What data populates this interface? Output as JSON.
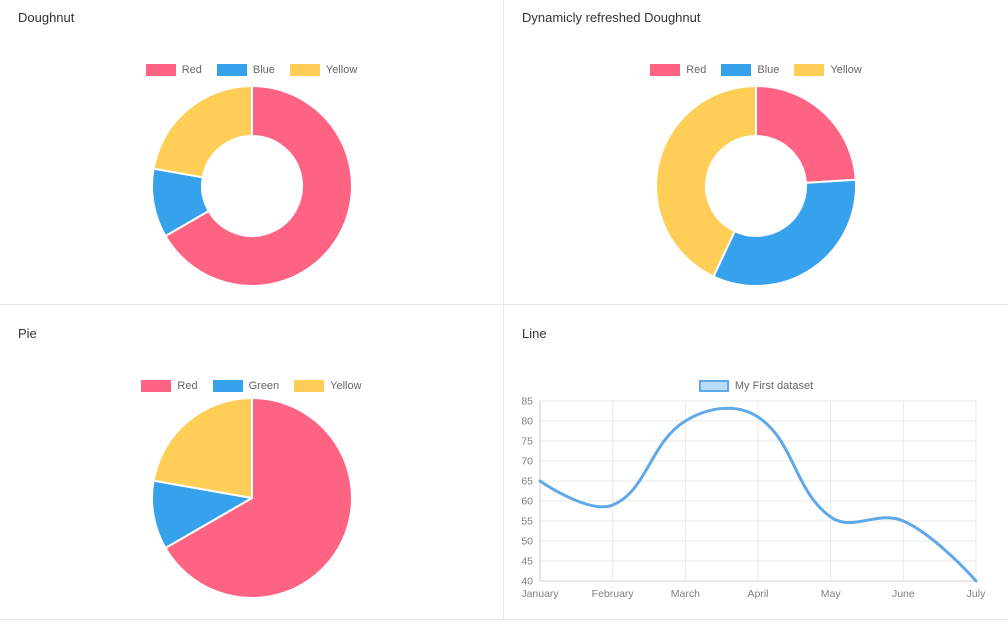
{
  "page": {
    "background": "#ffffff",
    "divider_color": "#e7e7e7",
    "title_color": "#333333",
    "legend_text_color": "#666666",
    "tick_text_color": "#7f7f7f"
  },
  "chart_data": [
    {
      "id": "doughnut",
      "type": "doughnut",
      "title": "Doughnut",
      "labels": [
        "Red",
        "Blue",
        "Yellow"
      ],
      "values": [
        300,
        50,
        100
      ],
      "colors": [
        "#ff6384",
        "#36a2eb",
        "#ffce56"
      ],
      "cutout_percent": 50,
      "legend_position": "top"
    },
    {
      "id": "dynamic-doughnut",
      "type": "doughnut",
      "title": "Dynamicly refreshed Doughnut",
      "labels": [
        "Red",
        "Blue",
        "Yellow"
      ],
      "values": [
        24,
        33,
        43
      ],
      "colors": [
        "#ff6384",
        "#36a2eb",
        "#ffce56"
      ],
      "cutout_percent": 50,
      "legend_position": "top"
    },
    {
      "id": "pie",
      "type": "pie",
      "title": "Pie",
      "labels": [
        "Red",
        "Green",
        "Yellow"
      ],
      "values": [
        300,
        50,
        100
      ],
      "colors": [
        "#ff6384",
        "#36a2eb",
        "#ffce56"
      ],
      "legend_position": "top"
    },
    {
      "id": "line",
      "type": "line",
      "title": "Line",
      "categories": [
        "January",
        "February",
        "March",
        "April",
        "May",
        "June",
        "July"
      ],
      "series": [
        {
          "name": "My First dataset",
          "values": [
            65,
            59,
            80,
            81,
            56,
            55,
            40
          ]
        }
      ],
      "ylim": [
        40,
        85
      ],
      "ytick_step": 5,
      "yticks": [
        40,
        45,
        50,
        55,
        60,
        65,
        70,
        75,
        80,
        85
      ],
      "line_color": "#60a9e8",
      "legend_fill": "#b9dcf7",
      "grid": true,
      "legend_position": "top"
    }
  ]
}
